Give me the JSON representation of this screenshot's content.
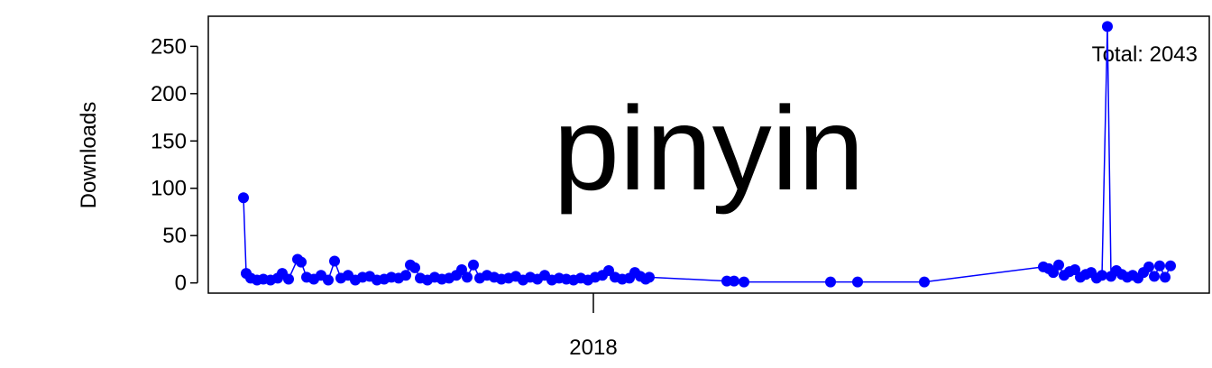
{
  "chart_data": {
    "type": "line",
    "watermark": "pinyin",
    "annotation": "Total: 2043",
    "y_label": "Downloads",
    "color": "#0000ff",
    "watermark_color": "#bebebe",
    "xlim": [
      2017.573,
      2018.683
    ],
    "xticks": [
      2018
    ],
    "ylim": [
      -10.8,
      281.8
    ],
    "yticks": [
      0,
      50,
      100,
      150,
      200,
      250
    ],
    "grid": false,
    "markers": true,
    "x": [
      2017.612,
      2017.615,
      2017.62,
      2017.627,
      2017.634,
      2017.642,
      2017.65,
      2017.655,
      2017.662,
      2017.672,
      2017.676,
      2017.682,
      2017.69,
      2017.698,
      2017.706,
      2017.713,
      2017.72,
      2017.728,
      2017.736,
      2017.744,
      2017.752,
      2017.76,
      2017.768,
      2017.776,
      2017.784,
      2017.792,
      2017.797,
      2017.802,
      2017.808,
      2017.816,
      2017.824,
      2017.832,
      2017.84,
      2017.848,
      2017.854,
      2017.86,
      2017.867,
      2017.874,
      2017.882,
      2017.89,
      2017.898,
      2017.906,
      2017.914,
      2017.922,
      2017.93,
      2017.938,
      2017.946,
      2017.954,
      2017.962,
      2017.97,
      2017.978,
      2017.986,
      2017.994,
      2018.002,
      2018.01,
      2018.017,
      2018.024,
      2018.032,
      2018.04,
      2018.046,
      2018.052,
      2018.058,
      2018.062,
      2018.148,
      2018.156,
      2018.167,
      2018.263,
      2018.293,
      2018.367,
      2018.499,
      2018.505,
      2018.51,
      2018.516,
      2018.522,
      2018.528,
      2018.534,
      2018.54,
      2018.546,
      2018.552,
      2018.558,
      2018.564,
      2018.57,
      2018.574,
      2018.58,
      2018.586,
      2018.592,
      2018.598,
      2018.604,
      2018.61,
      2018.616,
      2018.622,
      2018.628,
      2018.634,
      2018.64
    ],
    "values": [
      90,
      10,
      5,
      3,
      4,
      3,
      5,
      10,
      4,
      25,
      22,
      6,
      4,
      8,
      3,
      23,
      5,
      8,
      3,
      6,
      7,
      3,
      4,
      6,
      5,
      8,
      19,
      16,
      5,
      3,
      6,
      4,
      5,
      8,
      14,
      6,
      19,
      5,
      8,
      6,
      4,
      5,
      7,
      3,
      6,
      4,
      8,
      3,
      5,
      4,
      3,
      5,
      3,
      6,
      8,
      13,
      6,
      4,
      5,
      11,
      7,
      4,
      6,
      2,
      2,
      1,
      1,
      1,
      1,
      17,
      15,
      11,
      19,
      8,
      12,
      14,
      6,
      9,
      11,
      5,
      8,
      271,
      7,
      13,
      9,
      6,
      8,
      5,
      11,
      17,
      7,
      18,
      6,
      18
    ]
  }
}
